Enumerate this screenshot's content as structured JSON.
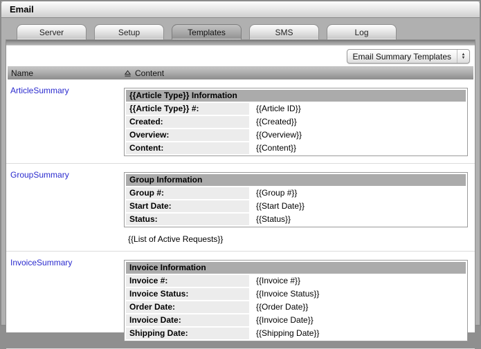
{
  "window": {
    "title": "Email"
  },
  "tabs": [
    {
      "label": "Server",
      "active": false
    },
    {
      "label": "Setup",
      "active": false
    },
    {
      "label": "Templates",
      "active": true
    },
    {
      "label": "SMS",
      "active": false
    },
    {
      "label": "Log",
      "active": false
    }
  ],
  "template_selector": {
    "value": "Email Summary Templates",
    "arrows": "stepper-up-down"
  },
  "table": {
    "columns": {
      "name": "Name",
      "content": "Content",
      "sort_icon": "sort-ascending-icon"
    },
    "rows": [
      {
        "name": "ArticleSummary",
        "template": {
          "header": "{{Article Type}} Information",
          "fields": [
            {
              "label": "{{Article Type}} #:",
              "value": "{{Article ID}}"
            },
            {
              "label": "Created:",
              "value": "{{Created}}"
            },
            {
              "label": "Overview:",
              "value": "{{Overview}}"
            },
            {
              "label": "Content:",
              "value": "{{Content}}"
            }
          ],
          "footer": ""
        }
      },
      {
        "name": "GroupSummary",
        "template": {
          "header": "Group Information",
          "fields": [
            {
              "label": "Group #:",
              "value": "{{Group #}}"
            },
            {
              "label": "Start Date:",
              "value": "{{Start Date}}"
            },
            {
              "label": "Status:",
              "value": "{{Status}}"
            }
          ],
          "footer": "{{List of Active Requests}}"
        }
      },
      {
        "name": "InvoiceSummary",
        "template": {
          "header": "Invoice Information",
          "fields": [
            {
              "label": "Invoice #:",
              "value": "{{Invoice #}}"
            },
            {
              "label": "Invoice Status:",
              "value": "{{Invoice Status}}"
            },
            {
              "label": "Order Date:",
              "value": "{{Order Date}}"
            },
            {
              "label": "Invoice Date:",
              "value": "{{Invoice Date}}"
            },
            {
              "label": "Shipping Date:",
              "value": "{{Shipping Date}}"
            }
          ],
          "footer": ""
        }
      }
    ]
  },
  "colors": {
    "link_blue": "#2a2ace",
    "active_tab_gray": "#a8a8a8",
    "table_header_gray": "#ababab",
    "label_cell_gray": "#ececec",
    "panel_border": "#8f8f8f"
  }
}
